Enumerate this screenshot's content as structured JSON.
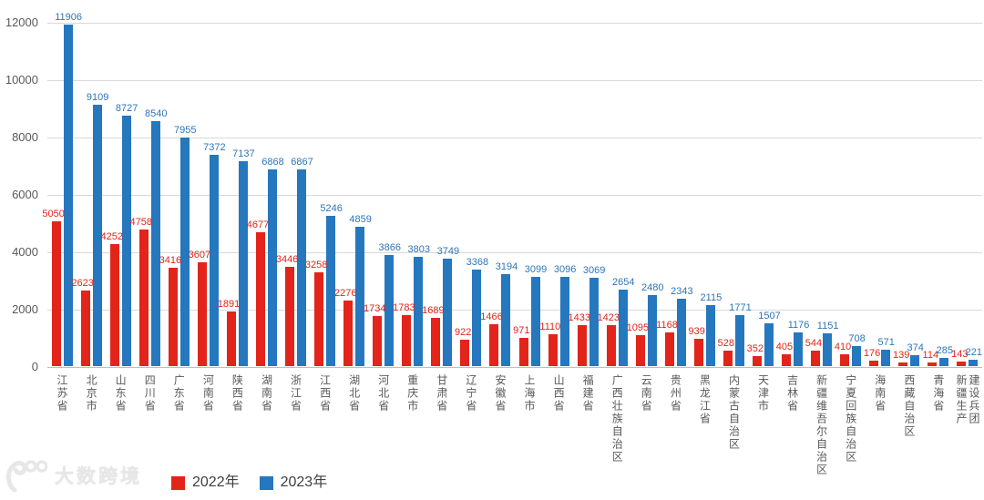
{
  "chart_data": {
    "type": "bar",
    "title": "",
    "categories": [
      "江苏省",
      "北京市",
      "山东省",
      "四川省",
      "广东省",
      "河南省",
      "陕西省",
      "湖南省",
      "浙江省",
      "江西省",
      "湖北省",
      "河北省",
      "重庆市",
      "甘肃省",
      "辽宁省",
      "安徽省",
      "上海市",
      "山西省",
      "福建省",
      "广西壮族自治区",
      "云南省",
      "贵州省",
      "黑龙江省",
      "内蒙古自治区",
      "天津市",
      "吉林省",
      "新疆维吾尔自治区",
      "宁夏回族自治区",
      "海南省",
      "西藏自治区",
      "青海省",
      "新疆生产\n建设兵团"
    ],
    "series": [
      {
        "name": "2022年",
        "color": "#e2241a",
        "label_color": "#e2241a",
        "values": [
          5050,
          2623,
          4252,
          4758,
          3416,
          3607,
          1891,
          4677,
          3446,
          3258,
          2276,
          1734,
          1783,
          1689,
          922,
          1466,
          971,
          1110,
          1433,
          1423,
          1095,
          1168,
          939,
          528,
          352,
          405,
          544,
          410,
          176,
          139,
          114,
          143
        ]
      },
      {
        "name": "2023年",
        "color": "#2577be",
        "label_color": "#2e75b6",
        "values": [
          11906,
          9109,
          8727,
          8540,
          7955,
          7372,
          7137,
          6868,
          6867,
          5246,
          4859,
          3866,
          3803,
          3749,
          3368,
          3194,
          3099,
          3096,
          3069,
          2654,
          2480,
          2343,
          2115,
          1771,
          1507,
          1176,
          1151,
          708,
          571,
          374,
          285,
          221
        ]
      }
    ],
    "xlabel": "",
    "ylabel": "",
    "ylim": [
      0,
      12000
    ],
    "yticks": [
      0,
      2000,
      4000,
      6000,
      8000,
      10000,
      12000
    ],
    "grid": "horizontal",
    "gridline_color": "#d9d9d9",
    "axis_text_color": "#595959",
    "legend_position": "bottom"
  },
  "watermark": {
    "text": "大数跨境",
    "logo": "100-swirl-logo",
    "color": "#e7e7e7"
  }
}
